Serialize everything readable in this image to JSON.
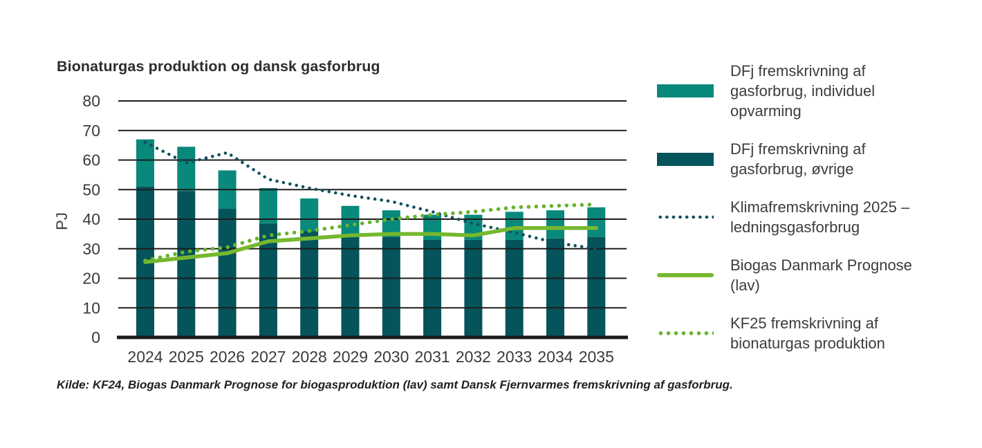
{
  "chart": {
    "title": "Bionaturgas produktion og dansk gasforbrug",
    "source": "Kilde: KF24, Biogas Danmark Prognose for biogasproduktion (lav) samt Dansk Fjernvarmes fremskrivning af gasforbrug.",
    "y_axis": {
      "label": "PJ",
      "min": 0,
      "max": 80,
      "tick_step": 10,
      "ticks": [
        80,
        70,
        60,
        50,
        40,
        30,
        20,
        10,
        0
      ]
    }
  },
  "chart_data": {
    "type": "bar",
    "subtype": "stacked-bars-with-lines",
    "title": "Bionaturgas produktion og dansk gasforbrug",
    "xlabel": "",
    "ylabel": "PJ",
    "ylim": [
      0,
      80
    ],
    "grid": true,
    "legend_position": "right",
    "categories": [
      "2024",
      "2025",
      "2026",
      "2027",
      "2028",
      "2029",
      "2030",
      "2031",
      "2032",
      "2033",
      "2034",
      "2035"
    ],
    "bar_series": [
      {
        "name": "DFj fremskrivning af gasforbrug, øvrige",
        "color": "#05535b",
        "values": [
          51,
          49.5,
          43.5,
          38.5,
          36,
          34.5,
          34,
          33,
          33,
          33,
          33.5,
          34
        ]
      },
      {
        "name": "DFj fremskrivning af gasforbrug, individuel opvarming",
        "color": "#08897b",
        "values": [
          16,
          15,
          13,
          12,
          11,
          10,
          9,
          8.5,
          8.5,
          9.5,
          9.5,
          10
        ]
      }
    ],
    "line_series": [
      {
        "name": "Klimafremskrivning 2025 –ledningsgasforbrug",
        "style": "dotted",
        "color": "#104f5e",
        "values": [
          66,
          59,
          62.5,
          53.5,
          50.5,
          48,
          46,
          42.5,
          38.5,
          35.5,
          32,
          30
        ]
      },
      {
        "name": "Biogas Danmark Prognose (lav)",
        "style": "solid",
        "color": "#76b82e",
        "values": [
          25.5,
          27,
          28.5,
          32.5,
          33.5,
          34.5,
          35,
          35,
          34.5,
          37,
          37,
          37
        ]
      },
      {
        "name": "KF25 fremskrivning af bionaturgas produktion",
        "style": "dotted",
        "color": "#66b42e",
        "values": [
          26,
          29,
          30.5,
          34.5,
          36,
          38,
          40,
          41.5,
          42.5,
          44,
          44.5,
          45
        ]
      }
    ]
  },
  "legend": {
    "items": [
      {
        "label": "DFj fremskrivning af gasforbrug, individuel opvarming",
        "swatch": "bar",
        "color": "#08897b"
      },
      {
        "label": "DFj fremskrivning af gasforbrug, øvrige",
        "swatch": "bar",
        "color": "#05535b"
      },
      {
        "label": "Klimafremskrivning 2025 –ledningsgasforbrug",
        "swatch": "dotted-line",
        "color": "#104f5e"
      },
      {
        "label": "Biogas Danmark Prognose (lav)",
        "swatch": "solid-line",
        "color": "#76b82e"
      },
      {
        "label": "KF25 fremskrivning af bionaturgas produktion",
        "swatch": "dotted-line",
        "color": "#66b42e"
      }
    ]
  }
}
